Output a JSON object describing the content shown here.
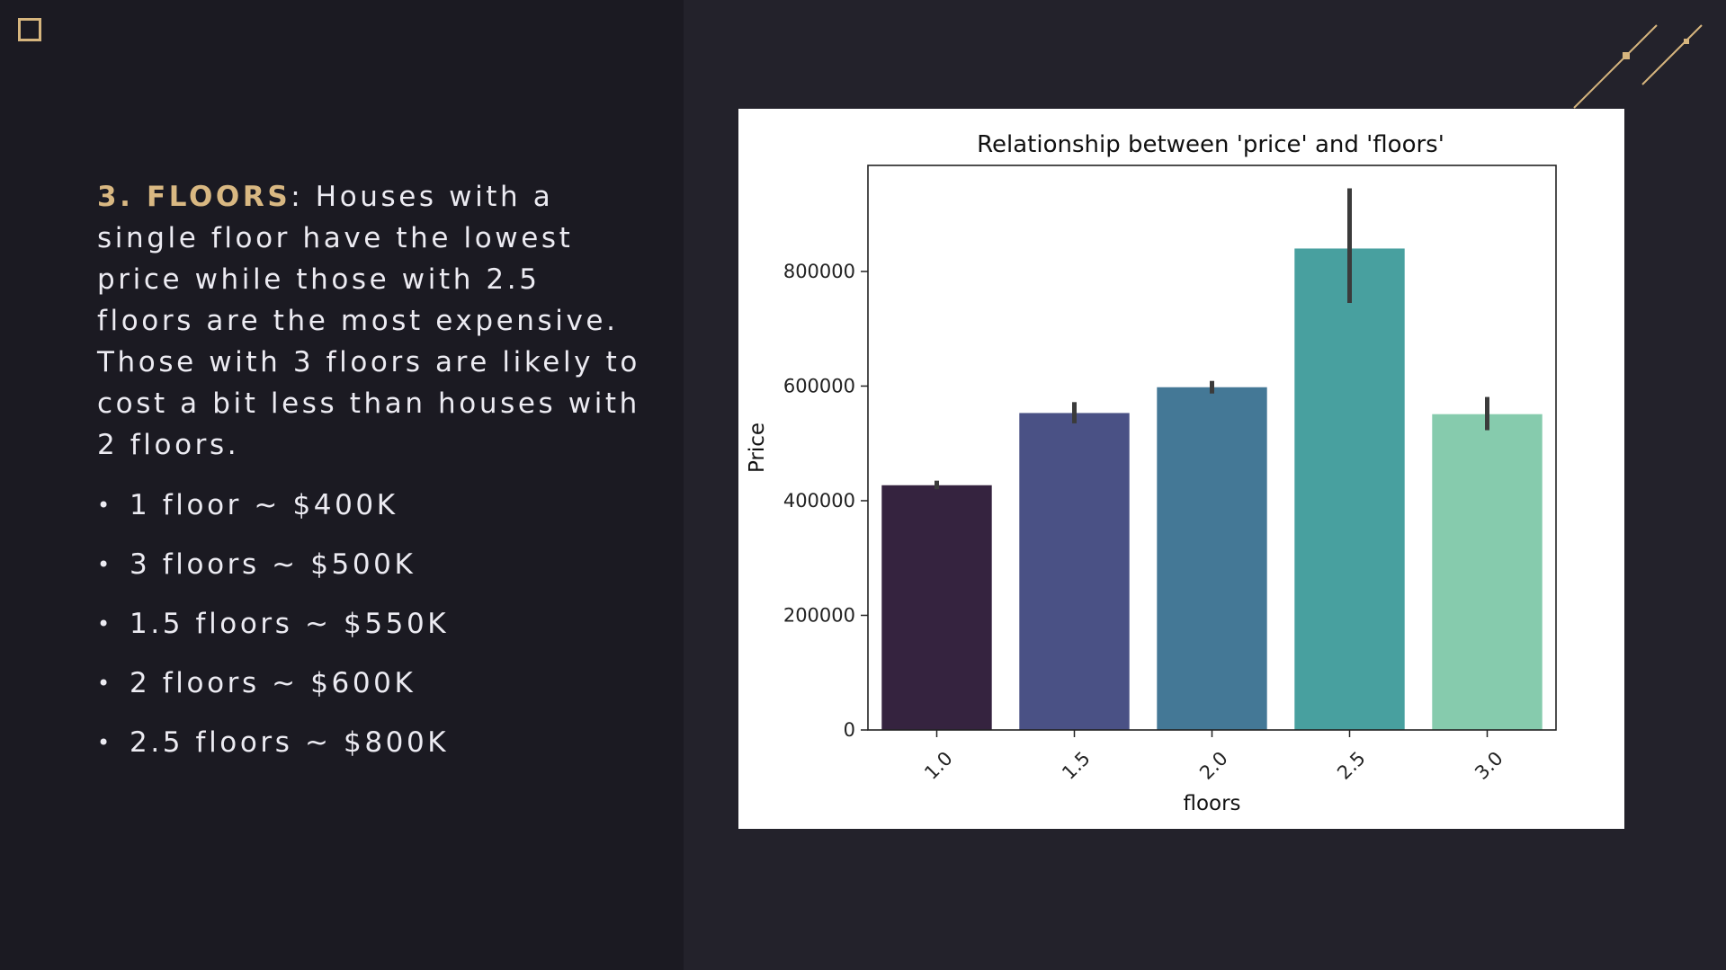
{
  "slide": {
    "heading": "3. FLOORS",
    "description_rest": ": Houses with a single floor have the lowest price while those with 2.5 floors are the most expensive. Those with 3 floors are likely to cost a bit less than houses with 2 floors.",
    "facts": [
      "1 floor ~ $400K",
      "3 floors ~ $500K",
      "1.5 floors ~ $550K",
      "2 floors ~ $600K",
      "2.5 floors ~ $800K"
    ],
    "accent_color": "#d9b882"
  },
  "chart_data": {
    "type": "bar",
    "title": "Relationship between 'price' and 'floors'",
    "xlabel": "floors",
    "ylabel": "Price",
    "categories": [
      "1.0",
      "1.5",
      "2.0",
      "2.5",
      "3.0"
    ],
    "values": [
      427000,
      553000,
      598000,
      840000,
      551000
    ],
    "error_bars": [
      [
        420000,
        435000
      ],
      [
        535000,
        572000
      ],
      [
        587000,
        609000
      ],
      [
        745000,
        945000
      ],
      [
        523000,
        581000
      ]
    ],
    "colors": [
      "#35233f",
      "#4a5185",
      "#447896",
      "#48a09f",
      "#86cbad"
    ],
    "yticks": [
      0,
      200000,
      400000,
      600000,
      800000
    ],
    "ylim": [
      0,
      985000
    ],
    "grid": false,
    "legend": "none"
  }
}
